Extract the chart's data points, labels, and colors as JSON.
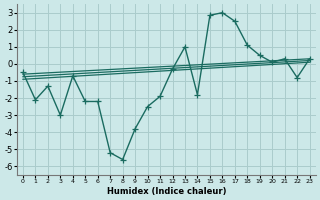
{
  "xlabel": "Humidex (Indice chaleur)",
  "bg_color": "#cce8e8",
  "grid_color": "#aacccc",
  "line_color": "#1a6b60",
  "xlim": [
    -0.5,
    23.5
  ],
  "ylim": [
    -6.5,
    3.5
  ],
  "yticks": [
    -6,
    -5,
    -4,
    -3,
    -2,
    -1,
    0,
    1,
    2,
    3
  ],
  "xticks": [
    0,
    1,
    2,
    3,
    4,
    5,
    6,
    7,
    8,
    9,
    10,
    11,
    12,
    13,
    14,
    15,
    16,
    17,
    18,
    19,
    20,
    21,
    22,
    23
  ],
  "main_x": [
    0,
    1,
    2,
    3,
    4,
    5,
    6,
    7,
    8,
    9,
    10,
    11,
    12,
    13,
    14,
    15,
    16,
    17,
    18,
    19,
    20,
    21,
    22,
    23
  ],
  "main_y": [
    -0.5,
    -2.1,
    -1.3,
    -3.0,
    -0.7,
    -2.2,
    -2.2,
    -5.2,
    -5.6,
    -3.8,
    -2.5,
    -1.9,
    -0.3,
    1.0,
    -1.8,
    2.85,
    3.0,
    2.5,
    1.1,
    0.5,
    0.1,
    0.3,
    -0.8,
    0.3
  ],
  "trend1_start": -0.9,
  "trend1_end": 0.1,
  "trend2_start": -0.75,
  "trend2_end": 0.2,
  "trend3_start": -0.6,
  "trend3_end": 0.3
}
